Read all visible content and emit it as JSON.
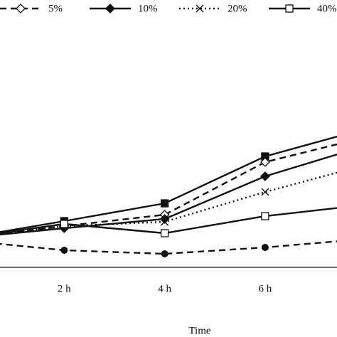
{
  "chart_data": {
    "type": "line",
    "x_label": "Time",
    "categories": [
      null,
      "2 h",
      "4 h",
      "6 h",
      null
    ],
    "ylim": [
      0,
      200
    ],
    "series": [
      {
        "color": "#111111",
        "dash": "solid",
        "marker": "square-filled",
        "values": [
          41,
          65,
          90,
          156,
          195
        ]
      },
      {
        "name": "5%",
        "color": "#111111",
        "dash": "dashed",
        "marker": "diamond-open",
        "values": [
          41,
          58,
          74,
          148,
          183
        ]
      },
      {
        "name": "10%",
        "color": "#111111",
        "dash": "solid",
        "marker": "diamond-filled",
        "values": [
          41,
          55,
          68,
          128,
          171
        ]
      },
      {
        "name": "20%",
        "color": "#111111",
        "dash": "dotted",
        "marker": "cross",
        "values": [
          41,
          58,
          64,
          106,
          144
        ]
      },
      {
        "name": "40%",
        "color": "#111111",
        "dash": "solid",
        "marker": "square-open",
        "values": [
          41,
          61,
          48,
          72,
          88
        ]
      },
      {
        "color": "#111111",
        "dash": "dashed",
        "marker": "circle-filled",
        "values": [
          38,
          24,
          19,
          28,
          40
        ]
      }
    ]
  }
}
